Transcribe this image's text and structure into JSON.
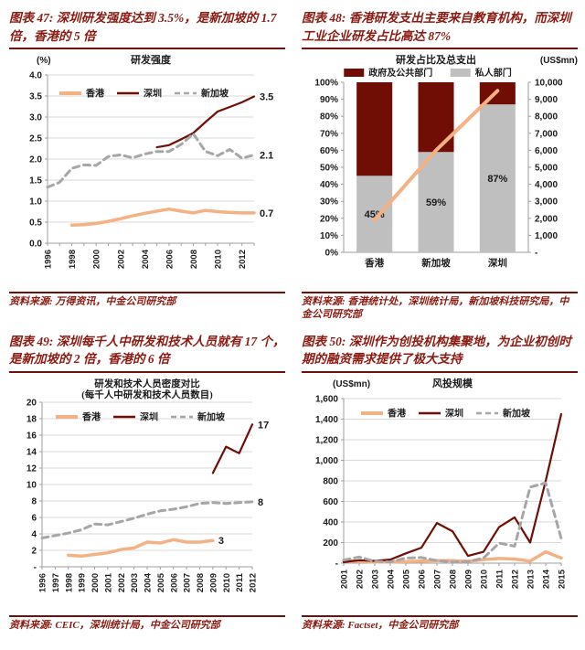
{
  "colors": {
    "maroon_text": "#8b1a10",
    "rule": "#6e100b",
    "hk_orange": "#f4b183",
    "sz_red": "#700d05",
    "sg_gray": "#a6a6a6",
    "bar_gray": "#bfbfbf",
    "grid": "#d9d9d9",
    "axis": "#9e9e9e",
    "label_text": "#1a1a1a"
  },
  "panels": [
    {
      "title": "图表 47: 深圳研发强度达到 3.5%，是新加坡的 1.7 倍，香港的 5 倍",
      "source": "资料来源: 万得资讯，中金公司研究部"
    },
    {
      "title": "图表 48: 香港研发支出主要来自教育机构，而深圳工业企业研发占比高达 87%",
      "source": "资料来源: 香港统计处，深圳统计局，新加坡科技研究局，中金公司研究部"
    },
    {
      "title": "图表 49: 深圳每千人中研发和技术人员就有 17 个，是新加坡的 2 倍，香港的 6 倍",
      "source": "资料来源: CEIC，深圳统计局，中金公司研究部"
    },
    {
      "title": "图表 50: 深圳作为创投机构集聚地，为企业初创时期的融资需求提供了极大支持",
      "source": "资料来源: Factset，中金公司研究部"
    }
  ],
  "chart_data": [
    {
      "type": "line",
      "title": "研发强度",
      "unit_label": "(%)",
      "unit_pos": "left",
      "ylim": [
        0,
        4
      ],
      "ystep": 0.5,
      "y_decimals": 1,
      "y_zero_dash": false,
      "grid": true,
      "legend_position": "top-inside",
      "x": [
        "1996",
        "1997",
        "1998",
        "1999",
        "2000",
        "2001",
        "2002",
        "2003",
        "2004",
        "2005",
        "2006",
        "2007",
        "2008",
        "2009",
        "2010",
        "2011",
        "2012",
        "2013"
      ],
      "x_label_every": 2,
      "series": [
        {
          "name": "香港",
          "color": "#f4b183",
          "width": 3.5,
          "dashed": false,
          "end_label": "0.7",
          "values": [
            null,
            null,
            0.43,
            0.44,
            0.47,
            0.52,
            0.58,
            0.65,
            0.71,
            0.76,
            0.81,
            0.76,
            0.72,
            0.78,
            0.75,
            0.73,
            0.72,
            0.72
          ]
        },
        {
          "name": "深圳",
          "color": "#700d05",
          "width": 2.2,
          "dashed": false,
          "end_label": "3.5",
          "values": [
            null,
            null,
            null,
            null,
            null,
            null,
            null,
            null,
            null,
            2.28,
            2.33,
            2.47,
            2.62,
            2.88,
            3.13,
            3.24,
            3.35,
            3.49
          ]
        },
        {
          "name": "新加坡",
          "color": "#a6a6a6",
          "width": 3,
          "dashed": true,
          "end_label": "2.1",
          "values": [
            1.33,
            1.45,
            1.78,
            1.86,
            1.85,
            2.06,
            2.1,
            2.03,
            2.12,
            2.18,
            2.18,
            2.35,
            2.6,
            2.18,
            2.08,
            2.23,
            2.02,
            2.1
          ]
        }
      ]
    },
    {
      "type": "stacked_bar_line",
      "title": "研发占比及总支出",
      "right_unit_label": "(US$mn)",
      "categories": [
        "香港",
        "新加坡",
        "深圳"
      ],
      "segments": [
        {
          "name": "政府及公共部门",
          "color": "#700d05",
          "values": [
            55,
            41,
            13
          ]
        },
        {
          "name": "私人部门",
          "color": "#bfbfbf",
          "values": [
            45,
            59,
            87
          ]
        }
      ],
      "bar_labels": [
        "45%",
        "59%",
        "87%"
      ],
      "line": {
        "color": "#f4b183",
        "width": 4,
        "values": [
          1900,
          6000,
          9500
        ]
      },
      "left_ylim": [
        0,
        100
      ],
      "left_ystep": 10,
      "right_ylim": [
        0,
        10000
      ],
      "right_ystep": 1000,
      "legend_position": "top"
    },
    {
      "type": "line",
      "title_lines": [
        "研发和技术人员密度对比",
        "(每千人中研发和技术人员数目)"
      ],
      "ylim": [
        0,
        20
      ],
      "ystep": 2,
      "y_decimals": 0,
      "y_zero_dash": true,
      "grid": true,
      "legend_position": "top-inside",
      "x": [
        "1996",
        "1997",
        "1998",
        "1999",
        "2000",
        "2001",
        "2002",
        "2003",
        "2004",
        "2005",
        "2006",
        "2007",
        "2008",
        "2009",
        "2010",
        "2011",
        "2012"
      ],
      "x_label_every": 1,
      "series": [
        {
          "name": "香港",
          "color": "#f4b183",
          "width": 3.5,
          "dashed": false,
          "end_label": "3",
          "values": [
            null,
            null,
            1.4,
            1.3,
            1.5,
            1.7,
            2.1,
            2.3,
            3.0,
            2.9,
            3.3,
            3.0,
            3.0,
            3.2,
            null,
            null,
            null
          ]
        },
        {
          "name": "深圳",
          "color": "#700d05",
          "width": 2.2,
          "dashed": false,
          "end_label": "17",
          "values": [
            null,
            null,
            null,
            null,
            null,
            null,
            null,
            null,
            null,
            null,
            null,
            null,
            null,
            11.4,
            14.6,
            13.8,
            17.3
          ]
        },
        {
          "name": "新加坡",
          "color": "#a6a6a6",
          "width": 3,
          "dashed": true,
          "end_label": "8",
          "values": [
            3.5,
            3.8,
            4.1,
            4.5,
            5.2,
            5.1,
            5.5,
            5.9,
            6.4,
            6.8,
            7.0,
            7.3,
            7.7,
            7.8,
            7.7,
            7.8,
            7.9
          ]
        }
      ]
    },
    {
      "type": "line",
      "title": "风投规模",
      "unit_label": "(US$mn)",
      "unit_pos": "left",
      "ylim": [
        0,
        1600
      ],
      "ystep": 200,
      "y_decimals": 0,
      "y_comma": true,
      "y_zero_dash": true,
      "grid": true,
      "legend_position": "top-inside",
      "x": [
        "2001",
        "2002",
        "2003",
        "2004",
        "2005",
        "2006",
        "2007",
        "2008",
        "2009",
        "2010",
        "2011",
        "2012",
        "2013",
        "2014",
        "2015"
      ],
      "x_label_every": 1,
      "series": [
        {
          "name": "香港",
          "color": "#f4b183",
          "width": 3.5,
          "dashed": false,
          "values": [
            25,
            18,
            12,
            12,
            15,
            20,
            25,
            25,
            18,
            35,
            45,
            40,
            20,
            110,
            50
          ]
        },
        {
          "name": "深圳",
          "color": "#700d05",
          "width": 2.2,
          "dashed": false,
          "values": [
            10,
            28,
            22,
            35,
            95,
            150,
            390,
            310,
            70,
            110,
            350,
            445,
            200,
            800,
            1450
          ]
        },
        {
          "name": "新加坡",
          "color": "#a6a6a6",
          "width": 3,
          "dashed": true,
          "values": [
            30,
            60,
            18,
            12,
            50,
            55,
            25,
            12,
            15,
            50,
            195,
            165,
            740,
            780,
            240
          ]
        }
      ]
    }
  ]
}
